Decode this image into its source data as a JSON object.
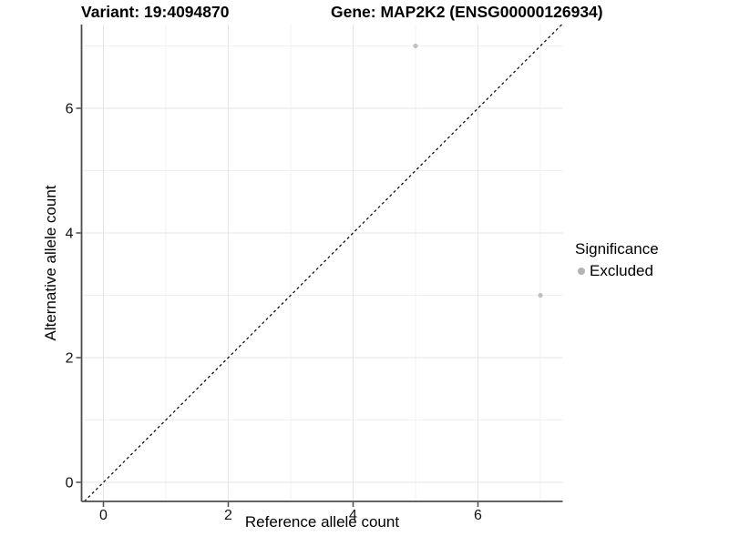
{
  "header": {
    "variant_title": "Variant: 19:4094870",
    "gene_title": "Gene: MAP2K2 (ENSG00000126934)"
  },
  "axes": {
    "x_label": "Reference allele count",
    "y_label": "Alternative allele count"
  },
  "legend": {
    "title": "Significance",
    "items": [
      {
        "label": "Excluded",
        "color": "#b3b3b3"
      }
    ]
  },
  "chart_data": {
    "type": "scatter",
    "title": "Variant: 19:4094870    Gene: MAP2K2 (ENSG00000126934)",
    "xlabel": "Reference allele count",
    "ylabel": "Alternative allele count",
    "xlim": [
      -0.35,
      7.35
    ],
    "ylim": [
      -0.35,
      7.35
    ],
    "x_ticks": [
      0,
      2,
      4,
      6
    ],
    "y_ticks": [
      0,
      2,
      4,
      6
    ],
    "x_minor_ticks": [
      1,
      3,
      5,
      7
    ],
    "y_minor_ticks": [
      1,
      3,
      5,
      7
    ],
    "grid": true,
    "legend_position": "right",
    "series": [
      {
        "name": "Excluded",
        "type": "scatter",
        "color": "#c0c0c0",
        "points": [
          {
            "x": 5,
            "y": 7
          },
          {
            "x": 7,
            "y": 3
          }
        ]
      }
    ],
    "reference_line": {
      "kind": "identity",
      "equation": "y = x",
      "style": "dashed",
      "color": "#111111"
    }
  },
  "colors": {
    "background": "#ffffff",
    "grid_major": "#e4e4e4",
    "grid_minor": "#f1f1f1",
    "axis_line": "#4d4d4d",
    "tick_mark": "#4d4d4d",
    "point": "#c0c0c0",
    "legend_key": "#b3b3b3",
    "text": "#000000"
  }
}
